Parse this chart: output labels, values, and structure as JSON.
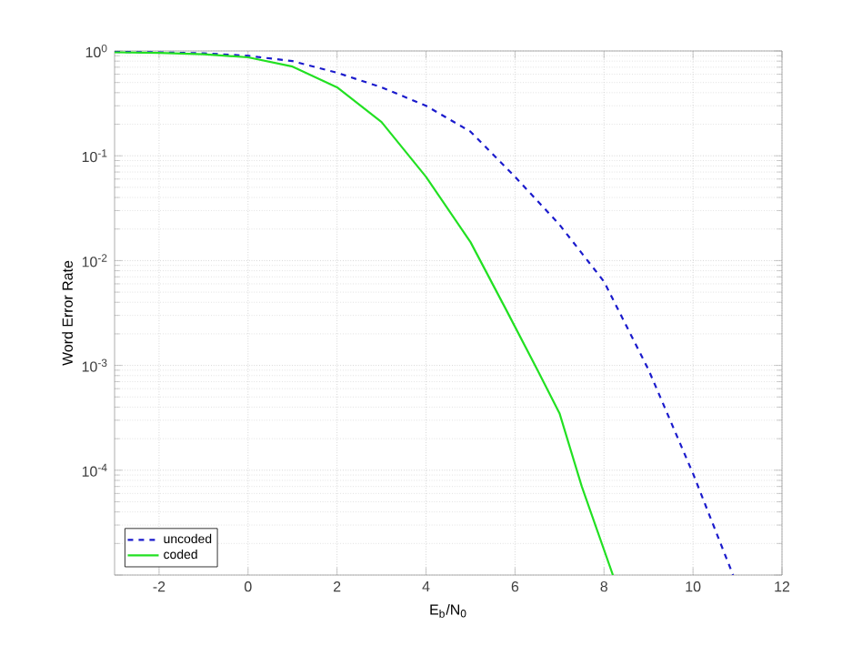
{
  "chart_data": {
    "type": "line",
    "xlabel": "E$_{b}$/N$_{0}$",
    "ylabel": "Word Error Rate",
    "log": "y",
    "grid": true,
    "legend": "bottom left",
    "marker": "none",
    "xlim": [
      -3,
      12
    ],
    "xticks": [
      -2,
      0,
      2,
      4,
      6,
      8,
      10,
      12
    ],
    "ylim": [
      1e-05,
      1
    ],
    "yticks": [
      {
        "value": 1e-05,
        "label": null
      },
      {
        "value": 0.0001,
        "label": "10$^{-4}$"
      },
      {
        "value": 0.001,
        "label": "10$^{-3}$"
      },
      {
        "value": 0.01,
        "label": "10$^{-2}$"
      },
      {
        "value": 0.1,
        "label": "10$^{-1}$"
      },
      {
        "value": 1,
        "label": "10$^{0}$"
      }
    ],
    "series": [
      {
        "name": "uncoded",
        "color": "#1a1acc",
        "line_style": "dashed",
        "x": [
          -3,
          -2,
          -1,
          0,
          1,
          2,
          3,
          4,
          5,
          6,
          7,
          8,
          9,
          10,
          10.9
        ],
        "values": [
          0.98,
          0.97,
          0.95,
          0.9,
          0.8,
          0.62,
          0.45,
          0.3,
          0.17,
          0.063,
          0.022,
          0.0063,
          0.00091,
          9.3e-05,
          1e-05
        ]
      },
      {
        "name": "coded",
        "color": "#22e022",
        "line_style": "solid",
        "x": [
          -3,
          -2,
          -1,
          0,
          1,
          2,
          3,
          4,
          5,
          5.8,
          6.5,
          7,
          7.5,
          8.2
        ],
        "values": [
          0.97,
          0.96,
          0.93,
          0.87,
          0.71,
          0.45,
          0.21,
          0.063,
          0.015,
          0.0034,
          0.00091,
          0.00035,
          7e-05,
          1e-05
        ]
      }
    ]
  }
}
